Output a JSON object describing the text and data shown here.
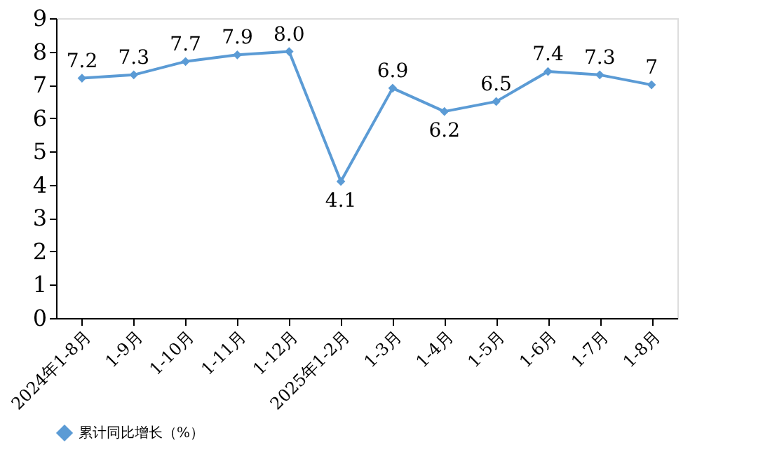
{
  "chart_data": {
    "type": "line",
    "categories": [
      "2024年1-8月",
      "1-9月",
      "1-10月",
      "1-11月",
      "1-12月",
      "2025年1-2月",
      "1-3月",
      "1-4月",
      "1-5月",
      "1-6月",
      "1-7月",
      "1-8月"
    ],
    "series": [
      {
        "name": "累计同比增长（%）",
        "color": "#5b9bd5",
        "values": [
          7.2,
          7.3,
          7.7,
          7.9,
          8.0,
          4.1,
          6.9,
          6.2,
          6.5,
          7.4,
          7.3,
          7
        ],
        "value_labels": [
          "7.2",
          "7.3",
          "7.7",
          "7.9",
          "8.0",
          "4.1",
          "6.9",
          "6.2",
          "6.5",
          "7.4",
          "7.3",
          "7"
        ]
      }
    ],
    "ylim": [
      0,
      9
    ],
    "yticks": [
      0,
      1,
      2,
      3,
      4,
      5,
      6,
      7,
      8,
      9
    ],
    "grid": false,
    "legend": "bottom",
    "marker": "diamond",
    "line_style": "solid"
  }
}
